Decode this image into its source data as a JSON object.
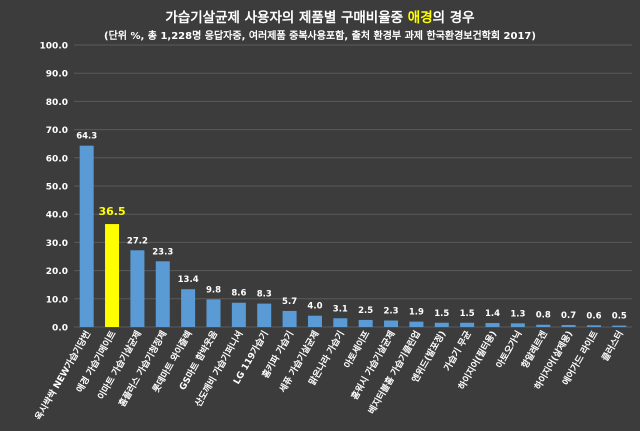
{
  "title": {
    "prefix": "가습기살균제 사용자의 제품별 구매비율중 ",
    "highlight": "애경",
    "suffix": "의 경우"
  },
  "subtitle": "(단위 %, 총 1,228명 응답자중, 여러제품 중복사용포함, 출처 환경부 과제 한국환경보건학회 2017)",
  "colors": {
    "background": "#3c3c3c",
    "bar": "#5b9bd5",
    "highlight_bar": "#ffff00",
    "text": "#ffffff",
    "highlight_text": "#ffff00",
    "grid": "#5a5a5a"
  },
  "chart_data": {
    "type": "bar",
    "categories": [
      "옥시싹싹 NEW가습기당번",
      "애경 가습기메이트",
      "이마트 가습기살균제",
      "홈플러스 가습기청정제",
      "롯데마트 와이즐렉",
      "GS마트 함박웃음",
      "산도깨비 가습기퍼니셔",
      "LG 119가습기",
      "홈키파 가습기",
      "세퓨 가습기살균제",
      "맑은나라 가습기",
      "아토세이프",
      "홈워시 가습기살균제",
      "베지터블홈 가습기클린업",
      "엔위드(발포정)",
      "가습기 무균",
      "하이지어(필터용)",
      "아토오가닉",
      "항알레르겐",
      "하이지어(살제용)",
      "에어가드 라이트",
      "클러스터"
    ],
    "values": [
      64.3,
      36.5,
      27.2,
      23.3,
      13.4,
      9.8,
      8.6,
      8.3,
      5.7,
      4.0,
      3.1,
      2.5,
      2.3,
      1.9,
      1.5,
      1.5,
      1.4,
      1.3,
      0.8,
      0.7,
      0.6,
      0.5
    ],
    "value_labels": [
      "64.3",
      "36.5",
      "27.2",
      "23.3",
      "13.4",
      "9.8",
      "8.6",
      "8.3",
      "5.7",
      "4.0",
      "3.1",
      "2.5",
      "2.3",
      "1.9",
      "1.5",
      "1.5",
      "1.4",
      "1.3",
      "0.8",
      "0.7",
      "0.6",
      "0.5"
    ],
    "highlight_index": 1,
    "ylim": [
      0,
      100
    ],
    "yticks": [
      0,
      10,
      20,
      30,
      40,
      50,
      60,
      70,
      80,
      90,
      100
    ],
    "ytick_labels": [
      "0.0",
      "10.0",
      "20.0",
      "30.0",
      "40.0",
      "50.0",
      "60.0",
      "70.0",
      "80.0",
      "90.0",
      "100.0"
    ],
    "grid": true,
    "xlabel": "",
    "ylabel": ""
  }
}
